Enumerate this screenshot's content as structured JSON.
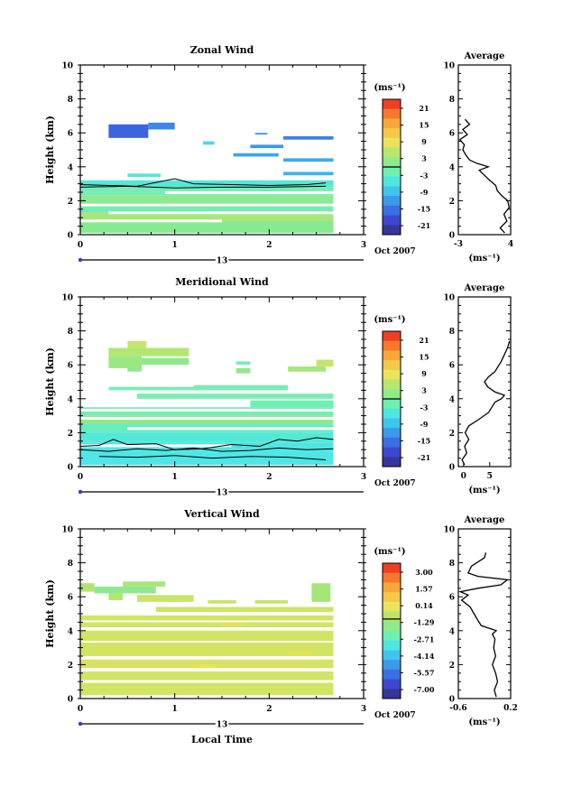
{
  "figure": {
    "date_label": "Oct 2007",
    "xlabel": "Local Time"
  },
  "colors": {
    "colorbar": [
      "#f03f23",
      "#f6782b",
      "#f8a73a",
      "#f6c84a",
      "#e9e35d",
      "#b9e66d",
      "#8fea8a",
      "#6ef0b0",
      "#4ee6e0",
      "#3ec6ee",
      "#3c99ec",
      "#3b6ee2",
      "#3d47d0",
      "#37369a"
    ]
  },
  "chart_data": [
    {
      "type": "heatmap",
      "id": "zonal",
      "title": "Zonal Wind",
      "ylabel": "Height (km)",
      "xlim": [
        0,
        3
      ],
      "ylim": [
        0,
        10
      ],
      "xticks": [
        "0",
        "1",
        "2",
        "3"
      ],
      "yticks": [
        "0",
        "2",
        "4",
        "6",
        "8",
        "10"
      ],
      "timeline_label": "13",
      "colorbar": {
        "unit": "(ms⁻¹)",
        "ticks": [
          "21",
          "15",
          "9",
          "3",
          "-3",
          "-9",
          "-15",
          "-21"
        ],
        "range": [
          -24,
          24
        ],
        "zero_line": 0
      },
      "blocks": [
        {
          "x": [
            0.3,
            0.72
          ],
          "y": [
            5.7,
            6.5
          ],
          "c": "#3c64e0"
        },
        {
          "x": [
            0.72,
            1.0
          ],
          "y": [
            6.2,
            6.6
          ],
          "c": "#3c87ea"
        },
        {
          "x": [
            1.3,
            1.42
          ],
          "y": [
            5.3,
            5.5
          ],
          "c": "#4dd6ea"
        },
        {
          "x": [
            1.62,
            2.1
          ],
          "y": [
            4.6,
            4.8
          ],
          "c": "#3ea6ee"
        },
        {
          "x": [
            1.85,
            1.98
          ],
          "y": [
            5.9,
            6.0
          ],
          "c": "#3c99ec"
        },
        {
          "x": [
            1.8,
            2.15
          ],
          "y": [
            5.1,
            5.3
          ],
          "c": "#3c99ec"
        },
        {
          "x": [
            2.15,
            2.68
          ],
          "y": [
            5.6,
            5.8
          ],
          "c": "#3c80e8"
        },
        {
          "x": [
            2.15,
            2.68
          ],
          "y": [
            4.3,
            4.5
          ],
          "c": "#3ea6ee"
        },
        {
          "x": [
            2.15,
            2.68
          ],
          "y": [
            3.5,
            3.7
          ],
          "c": "#3eb2ee"
        },
        {
          "x": [
            0.5,
            0.85
          ],
          "y": [
            3.4,
            3.6
          ],
          "c": "#56e7d6"
        },
        {
          "x": [
            0,
            2.68
          ],
          "y": [
            2.8,
            3.2
          ],
          "c": "#56e7d6"
        },
        {
          "x": [
            0,
            2.68
          ],
          "y": [
            2.3,
            2.8
          ],
          "c": "#78ecb4"
        },
        {
          "x": [
            0,
            2.68
          ],
          "y": [
            1.8,
            2.3
          ],
          "c": "#8ee98e"
        },
        {
          "x": [
            0,
            2.68
          ],
          "y": [
            1.3,
            1.8
          ],
          "c": "#72eeb0"
        },
        {
          "x": [
            0,
            2.68
          ],
          "y": [
            0.8,
            1.3
          ],
          "c": "#a6e67a"
        },
        {
          "x": [
            0,
            2.68
          ],
          "y": [
            0.1,
            0.8
          ],
          "c": "#88ea90"
        }
      ],
      "gaps": [
        [
          0,
          2.68,
          1.72
        ],
        [
          0,
          1.5,
          0.78
        ],
        [
          0.9,
          2.68,
          2.45
        ],
        [
          0.3,
          2.68,
          1.26
        ]
      ],
      "contours": [
        [
          [
            0,
            2.95
          ],
          [
            0.3,
            2.9
          ],
          [
            0.6,
            2.85
          ],
          [
            1.0,
            3.3
          ],
          [
            1.2,
            3.0
          ],
          [
            1.6,
            2.95
          ],
          [
            2.0,
            2.9
          ],
          [
            2.4,
            2.95
          ],
          [
            2.6,
            3.05
          ]
        ],
        [
          [
            0,
            2.8
          ],
          [
            0.5,
            2.85
          ],
          [
            1.0,
            2.75
          ],
          [
            1.5,
            2.8
          ],
          [
            2.0,
            2.8
          ],
          [
            2.6,
            2.85
          ]
        ]
      ],
      "avg": {
        "xlim": [
          -3,
          4
        ],
        "xticks": [
          "-3",
          "4"
        ],
        "profile": [
          [
            3.2,
            0.1
          ],
          [
            2.6,
            0.4
          ],
          [
            3.5,
            0.8
          ],
          [
            3.1,
            1.2
          ],
          [
            3.8,
            1.6
          ],
          [
            3.6,
            2.0
          ],
          [
            2.8,
            2.3
          ],
          [
            2.2,
            2.6
          ],
          [
            2.0,
            2.9
          ],
          [
            1.2,
            3.2
          ],
          [
            0.5,
            3.5
          ],
          [
            -0.2,
            3.8
          ],
          [
            1.0,
            4.0
          ],
          [
            -0.5,
            4.2
          ],
          [
            -1.5,
            4.4
          ],
          [
            -2.0,
            4.7
          ],
          [
            -2.4,
            5.0
          ],
          [
            -2.2,
            5.3
          ],
          [
            -2.8,
            5.6
          ],
          [
            -1.8,
            5.9
          ],
          [
            -2.4,
            6.2
          ],
          [
            -1.5,
            6.5
          ],
          [
            -2.1,
            6.8
          ]
        ]
      }
    },
    {
      "type": "heatmap",
      "id": "meridional",
      "title": "Meridional Wind",
      "ylabel": "Height (km)",
      "xlim": [
        0,
        3
      ],
      "ylim": [
        0,
        10
      ],
      "xticks": [
        "0",
        "1",
        "2",
        "3"
      ],
      "yticks": [
        "0",
        "2",
        "4",
        "6",
        "8",
        "10"
      ],
      "timeline_label": "13",
      "colorbar": {
        "unit": "(ms⁻¹)",
        "ticks": [
          "21",
          "15",
          "9",
          "3",
          "-3",
          "-9",
          "-15",
          "-21"
        ],
        "range": [
          -24,
          24
        ],
        "zero_line": 0
      },
      "blocks": [
        {
          "x": [
            0.5,
            0.7
          ],
          "y": [
            7.0,
            7.4
          ],
          "c": "#c5e56a"
        },
        {
          "x": [
            0.3,
            1.15
          ],
          "y": [
            6.5,
            7.0
          ],
          "c": "#b2e670"
        },
        {
          "x": [
            0.3,
            0.65
          ],
          "y": [
            5.8,
            6.5
          ],
          "c": "#9ae884"
        },
        {
          "x": [
            0.65,
            1.15
          ],
          "y": [
            6.0,
            6.4
          ],
          "c": "#8ee98e"
        },
        {
          "x": [
            0.5,
            0.65
          ],
          "y": [
            5.6,
            5.8
          ],
          "c": "#8ee98e"
        },
        {
          "x": [
            1.65,
            1.8
          ],
          "y": [
            6.0,
            6.2
          ],
          "c": "#78ecb4"
        },
        {
          "x": [
            1.65,
            1.8
          ],
          "y": [
            5.5,
            5.8
          ],
          "c": "#8ee98e"
        },
        {
          "x": [
            2.2,
            2.6
          ],
          "y": [
            5.6,
            5.9
          ],
          "c": "#a4e679"
        },
        {
          "x": [
            2.5,
            2.68
          ],
          "y": [
            5.9,
            6.3
          ],
          "c": "#c5e56a"
        },
        {
          "x": [
            0.3,
            1.3
          ],
          "y": [
            4.5,
            4.7
          ],
          "c": "#78ecb4"
        },
        {
          "x": [
            1.2,
            2.2
          ],
          "y": [
            4.5,
            4.8
          ],
          "c": "#78ecb4"
        },
        {
          "x": [
            0.6,
            2.68
          ],
          "y": [
            4.0,
            4.3
          ],
          "c": "#78ecb4"
        },
        {
          "x": [
            1.8,
            2.68
          ],
          "y": [
            3.5,
            3.9
          ],
          "c": "#6cf0b4"
        },
        {
          "x": [
            0,
            2.68
          ],
          "y": [
            3.0,
            3.5
          ],
          "c": "#78ecb4"
        },
        {
          "x": [
            0,
            2.68
          ],
          "y": [
            2.5,
            3.0
          ],
          "c": "#8ee98e"
        },
        {
          "x": [
            0,
            2.68
          ],
          "y": [
            2.0,
            2.5
          ],
          "c": "#66eec2"
        },
        {
          "x": [
            0,
            2.68
          ],
          "y": [
            1.4,
            2.0
          ],
          "c": "#54e8d8"
        },
        {
          "x": [
            0,
            2.68
          ],
          "y": [
            0.9,
            1.4
          ],
          "c": "#52e4e0"
        },
        {
          "x": [
            0,
            2.68
          ],
          "y": [
            0.1,
            0.9
          ],
          "c": "#4ee6e6"
        }
      ],
      "gaps": [
        [
          0,
          2.68,
          3.3
        ],
        [
          0,
          2.68,
          2.82
        ],
        [
          0.5,
          2.68,
          2.22
        ],
        [
          0,
          1.6,
          1.2
        ]
      ],
      "contours": [
        [
          [
            0,
            1.2
          ],
          [
            0.2,
            1.25
          ],
          [
            0.35,
            1.6
          ],
          [
            0.5,
            1.3
          ],
          [
            0.8,
            1.35
          ],
          [
            1.0,
            1.0
          ],
          [
            1.3,
            1.05
          ],
          [
            1.6,
            1.3
          ],
          [
            1.9,
            1.2
          ],
          [
            2.1,
            1.6
          ],
          [
            2.3,
            1.5
          ],
          [
            2.5,
            1.7
          ],
          [
            2.68,
            1.6
          ]
        ],
        [
          [
            0,
            1.0
          ],
          [
            0.3,
            0.9
          ],
          [
            0.6,
            1.05
          ],
          [
            0.9,
            0.95
          ],
          [
            1.2,
            1.1
          ],
          [
            1.5,
            0.9
          ],
          [
            1.8,
            0.95
          ],
          [
            2.1,
            1.1
          ],
          [
            2.4,
            1.0
          ],
          [
            2.68,
            1.05
          ]
        ],
        [
          [
            0.2,
            0.6
          ],
          [
            0.6,
            0.55
          ],
          [
            1.0,
            0.65
          ],
          [
            1.4,
            0.5
          ],
          [
            1.8,
            0.6
          ],
          [
            2.2,
            0.55
          ],
          [
            2.6,
            0.4
          ]
        ]
      ],
      "avg": {
        "xlim": [
          -1,
          9
        ],
        "xticks": [
          "0",
          "5"
        ],
        "profile": [
          [
            0.2,
            0.1
          ],
          [
            -0.3,
            0.4
          ],
          [
            0.6,
            0.8
          ],
          [
            0.2,
            1.2
          ],
          [
            1.0,
            1.6
          ],
          [
            0.3,
            2.0
          ],
          [
            1.0,
            2.4
          ],
          [
            3.0,
            2.8
          ],
          [
            4.8,
            3.2
          ],
          [
            5.4,
            3.5
          ],
          [
            6.0,
            3.8
          ],
          [
            7.2,
            4.0
          ],
          [
            7.8,
            4.2
          ],
          [
            6.0,
            4.4
          ],
          [
            4.6,
            4.7
          ],
          [
            4.0,
            5.0
          ],
          [
            4.8,
            5.3
          ],
          [
            6.0,
            5.6
          ],
          [
            6.6,
            5.9
          ],
          [
            7.2,
            6.2
          ],
          [
            7.8,
            6.6
          ],
          [
            8.4,
            7.0
          ],
          [
            8.8,
            7.4
          ]
        ]
      }
    },
    {
      "type": "heatmap",
      "id": "vertical",
      "title": "Vertical Wind",
      "ylabel": "Height (km)",
      "xlim": [
        0,
        3
      ],
      "ylim": [
        0,
        10
      ],
      "xticks": [
        "0",
        "1",
        "2",
        "3"
      ],
      "yticks": [
        "0",
        "2",
        "4",
        "6",
        "8",
        "10"
      ],
      "timeline_label": "13",
      "colorbar": {
        "unit": "(ms⁻¹)",
        "ticks": [
          "3.00",
          "1.57",
          "0.14",
          "-1.29",
          "-2.71",
          "-4.14",
          "-5.57",
          "-7.00"
        ],
        "range": [
          -7.71,
          3.71
        ],
        "zero_line": -1.0
      },
      "blocks": [
        {
          "x": [
            0,
            0.15
          ],
          "y": [
            6.3,
            6.8
          ],
          "c": "#b0e472"
        },
        {
          "x": [
            0.15,
            0.8
          ],
          "y": [
            6.2,
            6.6
          ],
          "c": "#8ee98e"
        },
        {
          "x": [
            0.45,
            0.9
          ],
          "y": [
            6.6,
            6.9
          ],
          "c": "#a6e67a"
        },
        {
          "x": [
            0.3,
            0.45
          ],
          "y": [
            5.8,
            6.2
          ],
          "c": "#b2e670"
        },
        {
          "x": [
            0.6,
            1.2
          ],
          "y": [
            5.7,
            6.1
          ],
          "c": "#c6e56a"
        },
        {
          "x": [
            2.45,
            2.65
          ],
          "y": [
            5.7,
            6.8
          ],
          "c": "#a4e678"
        },
        {
          "x": [
            1.35,
            1.65
          ],
          "y": [
            5.6,
            5.8
          ],
          "c": "#c6e56a"
        },
        {
          "x": [
            1.85,
            2.2
          ],
          "y": [
            5.6,
            5.8
          ],
          "c": "#c6e56a"
        },
        {
          "x": [
            0.8,
            2.68
          ],
          "y": [
            5.1,
            5.4
          ],
          "c": "#cbe566"
        },
        {
          "x": [
            0,
            2.68
          ],
          "y": [
            4.6,
            4.9
          ],
          "c": "#cfe563"
        },
        {
          "x": [
            0,
            2.68
          ],
          "y": [
            4.2,
            4.5
          ],
          "c": "#d2e464"
        },
        {
          "x": [
            1.5,
            1.75
          ],
          "y": [
            4.3,
            4.5
          ],
          "c": "#e6e352"
        },
        {
          "x": [
            0,
            2.68
          ],
          "y": [
            3.4,
            4.0
          ],
          "c": "#d2e464"
        },
        {
          "x": [
            0,
            2.68
          ],
          "y": [
            2.5,
            3.3
          ],
          "c": "#d4e462"
        },
        {
          "x": [
            2.2,
            2.45
          ],
          "y": [
            2.6,
            2.8
          ],
          "c": "#e6e352"
        },
        {
          "x": [
            0,
            2.68
          ],
          "y": [
            1.8,
            2.3
          ],
          "c": "#d4e462"
        },
        {
          "x": [
            1.2,
            1.45
          ],
          "y": [
            1.8,
            2.0
          ],
          "c": "#e6e352"
        },
        {
          "x": [
            0,
            2.68
          ],
          "y": [
            0.2,
            1.6
          ],
          "c": "#d2e464"
        }
      ],
      "gaps": [
        [
          0,
          2.68,
          0.98
        ],
        [
          0,
          2.68,
          2.38
        ]
      ],
      "contours": [],
      "avg": {
        "xlim": [
          -0.6,
          0.2
        ],
        "xticks": [
          "-0.6",
          "0.2"
        ],
        "profile": [
          [
            -0.02,
            0.1
          ],
          [
            -0.05,
            0.5
          ],
          [
            0.0,
            1.0
          ],
          [
            -0.03,
            1.5
          ],
          [
            -0.08,
            2.0
          ],
          [
            -0.03,
            2.5
          ],
          [
            -0.06,
            3.0
          ],
          [
            -0.04,
            3.5
          ],
          [
            -0.08,
            3.8
          ],
          [
            -0.02,
            4.0
          ],
          [
            -0.25,
            4.3
          ],
          [
            -0.3,
            4.6
          ],
          [
            -0.36,
            5.0
          ],
          [
            -0.42,
            5.4
          ],
          [
            -0.55,
            5.8
          ],
          [
            -0.45,
            6.1
          ],
          [
            -0.57,
            6.3
          ],
          [
            -0.3,
            6.5
          ],
          [
            0.05,
            6.7
          ],
          [
            0.15,
            7.0
          ],
          [
            -0.3,
            7.2
          ],
          [
            -0.45,
            7.4
          ],
          [
            -0.4,
            7.8
          ],
          [
            -0.2,
            8.3
          ],
          [
            -0.18,
            8.6
          ]
        ]
      }
    }
  ]
}
